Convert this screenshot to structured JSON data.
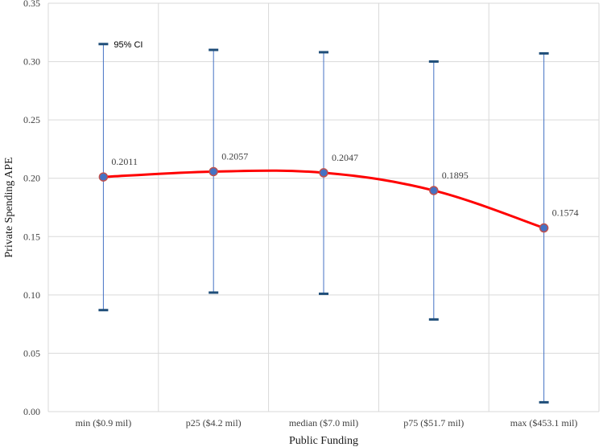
{
  "chart_data": {
    "type": "line",
    "xlabel": "Public Funding",
    "ylabel": "Private Spending APE",
    "categories": [
      "min ($0.9 mil)",
      "p25 ($4.2 mil)",
      "median ($7.0 mil)",
      "p75 ($51.7 mil)",
      "max ($453.1 mil)"
    ],
    "series": [
      {
        "values": [
          0.2011,
          0.2057,
          0.2047,
          0.1895,
          0.1574
        ],
        "value_labels": [
          "0.2011",
          "0.2057",
          "0.2047",
          "0.1895",
          "0.1574"
        ],
        "ci_lower": [
          0.087,
          0.102,
          0.101,
          0.079,
          0.008
        ],
        "ci_upper": [
          0.315,
          0.31,
          0.308,
          0.3,
          0.307
        ]
      }
    ],
    "ci_label": "95% CI",
    "ylim": [
      0,
      0.35
    ],
    "yticks": [
      0.0,
      0.05,
      0.1,
      0.15,
      0.2,
      0.25,
      0.3,
      0.35
    ],
    "ytick_labels": [
      "0.00",
      "0.05",
      "0.10",
      "0.15",
      "0.20",
      "0.25",
      "0.30",
      "0.35"
    ],
    "grid": true,
    "colors": {
      "line": "#ff0000",
      "marker_fill": "#4472c4",
      "marker_edge": "#c0504d",
      "ci_line": "#4472c4",
      "ci_cap": "#1f4e79",
      "grid": "#d9d9d9"
    }
  }
}
